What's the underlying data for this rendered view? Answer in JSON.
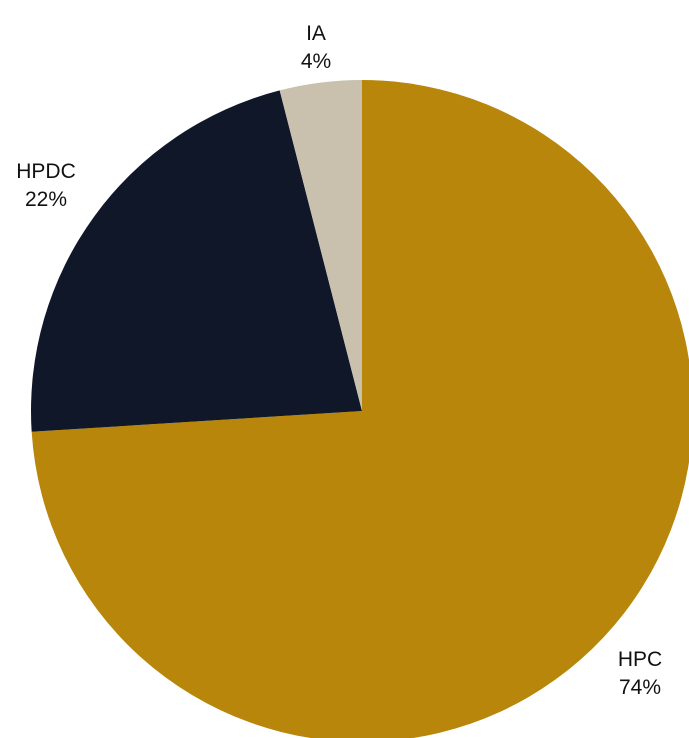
{
  "chart_data": {
    "type": "pie",
    "title": "",
    "start_angle_deg": 0,
    "direction": "clockwise",
    "slices": [
      {
        "label": "HPC",
        "value": 74,
        "value_label": "74%",
        "color": "#B8860B"
      },
      {
        "label": "HPDC",
        "value": 22,
        "value_label": "22%",
        "color": "#0F1729"
      },
      {
        "label": "IA",
        "value": 4,
        "value_label": "4%",
        "color": "#C9C1AE"
      }
    ]
  }
}
